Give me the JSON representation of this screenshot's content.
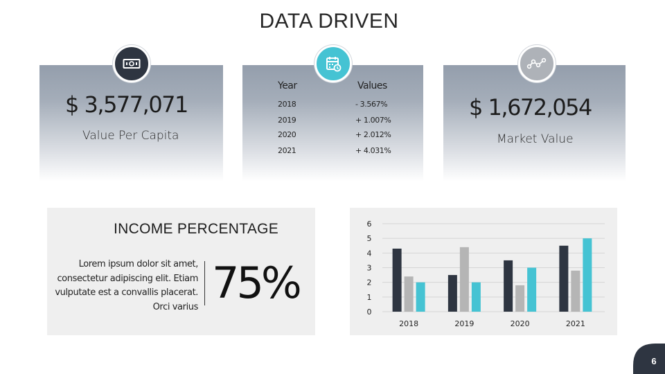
{
  "slide": {
    "title": "DATA DRIVEN",
    "page_number": "6"
  },
  "colors": {
    "dark": "#2e3541",
    "gray": "#b5b5b5",
    "teal": "#45c3d3",
    "card_gray": "#949eac"
  },
  "cards": {
    "left": {
      "icon": "money-bill-icon",
      "value": "$ 3,577,071",
      "label": "Value Per Capita"
    },
    "middle": {
      "icon": "calendar-clock-icon",
      "headers": {
        "year": "Year",
        "values": "Values"
      },
      "rows": [
        {
          "year": "2018",
          "value": "- 3.567%"
        },
        {
          "year": "2019",
          "value": "+ 1.007%"
        },
        {
          "year": "2020",
          "value": "+ 2.012%"
        },
        {
          "year": "2021",
          "value": "+ 4.031%"
        }
      ]
    },
    "right": {
      "icon": "trend-line-icon",
      "value": "$ 1,672,054",
      "label": "Market Value"
    }
  },
  "income": {
    "title": "INCOME PERCENTAGE",
    "body": "Lorem ipsum dolor sit amet, consectetur adipiscing elit. Etiam vulputate est a convallis placerat. Orci varius",
    "percent": "75%",
    "percent_value": 75
  },
  "chart_data": {
    "type": "bar",
    "categories": [
      "2018",
      "2019",
      "2020",
      "2021"
    ],
    "series": [
      {
        "values": [
          4.3,
          2.5,
          3.5,
          4.5
        ]
      },
      {
        "values": [
          2.4,
          4.4,
          1.8,
          2.8
        ]
      },
      {
        "values": [
          2.0,
          2.0,
          3.0,
          5.0
        ]
      }
    ],
    "ylim": [
      0,
      6
    ],
    "yticks": [
      "0",
      "1",
      "2",
      "3",
      "4",
      "5",
      "6"
    ],
    "grid": true,
    "legend": "none"
  }
}
